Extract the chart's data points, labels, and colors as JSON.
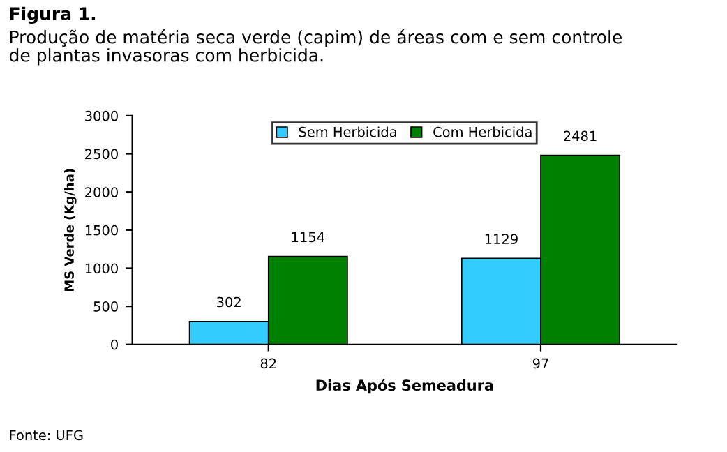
{
  "chart_data": {
    "type": "bar",
    "title": "Figura 1.",
    "subtitle": "Produção de matéria seca verde (capim) de áreas com e sem controle\nde plantas invasoras com herbicida.",
    "xlabel": "Dias Após Semeadura",
    "ylabel": "MS Verde (Kg/ha)",
    "categories": [
      "82",
      "97"
    ],
    "series": [
      {
        "name": "Sem Herbicida",
        "color": "#33ccff",
        "values": [
          302,
          1129
        ]
      },
      {
        "name": "Com Herbicida",
        "color": "#008000",
        "values": [
          1154,
          2481
        ]
      }
    ],
    "ylim": [
      0,
      3000
    ],
    "yticks": [
      0,
      500,
      1000,
      1500,
      2000,
      2500,
      3000
    ],
    "grid": false,
    "legend": "top",
    "data_labels": true,
    "annotations": [
      "Fonte: UFG"
    ]
  }
}
